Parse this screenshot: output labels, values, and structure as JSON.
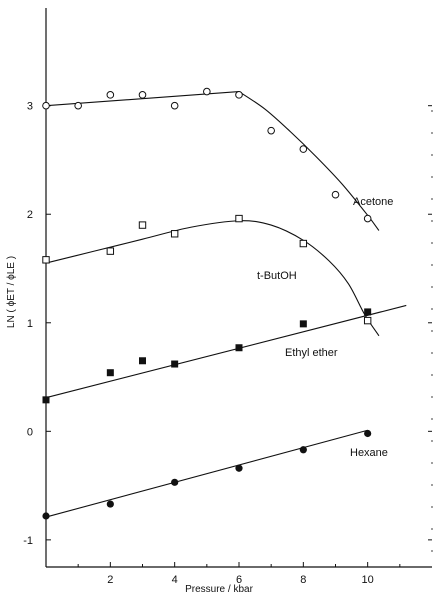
{
  "chart_data": {
    "type": "scatter",
    "title": "",
    "xlabel": "Pressure  /  kbar",
    "ylabel": "LN ( ϕET / ϕLE )",
    "xlim": [
      0,
      12
    ],
    "ylim": [
      -1.25,
      3.9
    ],
    "xticks": [
      2,
      4,
      6,
      8,
      10
    ],
    "yticks": [
      -1,
      0,
      1,
      2,
      3
    ],
    "grid": false,
    "series": [
      {
        "name": "Acetone",
        "marker": "open-circle",
        "x": [
          0,
          1,
          2,
          3,
          4,
          5,
          6,
          7,
          8,
          9,
          10
        ],
        "y": [
          3.0,
          3.0,
          3.1,
          3.1,
          3.0,
          3.13,
          3.1,
          2.77,
          2.6,
          2.18,
          1.96
        ],
        "curve_x": [
          0,
          6,
          6.8,
          7.6,
          8.4,
          9.2,
          10.0,
          10.35
        ],
        "curve_y": [
          3.0,
          3.13,
          2.97,
          2.76,
          2.53,
          2.28,
          1.99,
          1.85
        ]
      },
      {
        "name": "t-ButOH",
        "marker": "open-square",
        "x": [
          0,
          2,
          3,
          4,
          6,
          8,
          10
        ],
        "y": [
          1.58,
          1.66,
          1.9,
          1.82,
          1.96,
          1.73,
          1.02
        ],
        "curve_x": [
          0,
          1.5,
          3,
          4.5,
          6,
          7,
          8,
          8.8,
          9.4,
          9.9,
          10.35
        ],
        "curve_y": [
          1.55,
          1.66,
          1.77,
          1.88,
          1.94,
          1.9,
          1.76,
          1.57,
          1.36,
          1.08,
          0.88
        ]
      },
      {
        "name": "Ethyl ether",
        "marker": "filled-square",
        "x": [
          0,
          2,
          3,
          4,
          6,
          8,
          10
        ],
        "y": [
          0.29,
          0.54,
          0.65,
          0.62,
          0.77,
          0.99,
          1.1
        ],
        "curve_x": [
          0,
          11.2
        ],
        "curve_y": [
          0.31,
          1.16
        ]
      },
      {
        "name": "Hexane",
        "marker": "filled-circle",
        "x": [
          0,
          2,
          4,
          6,
          8,
          10
        ],
        "y": [
          -0.78,
          -0.67,
          -0.47,
          -0.34,
          -0.17,
          -0.02
        ],
        "curve_x": [
          0,
          10
        ],
        "curve_y": [
          -0.79,
          0.01
        ]
      }
    ]
  }
}
